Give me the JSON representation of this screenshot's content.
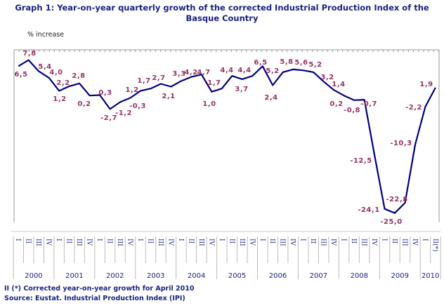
{
  "title_line1": "Graph 1: Year-on-year quarterly growth of the corrected Industrial Production Index of the",
  "title_line2": "Basque Country",
  "footnote": "II (*) Corrected year-on-year growth for April 2010",
  "source": "Source: Eustat. Industrial Production Index (IPI)",
  "chart_data": {
    "type": "line",
    "title": "Graph 1: Year-on-year quarterly growth of the corrected Industrial Production Index of the Basque Country",
    "ylabel": "% increase",
    "ylim": [
      -27,
      10
    ],
    "grid": false,
    "years": [
      "2000",
      "2001",
      "2002",
      "2003",
      "2004",
      "2005",
      "2006",
      "2007",
      "2008",
      "2009",
      "2010"
    ],
    "quarters": [
      "I",
      "II",
      "III",
      "IV",
      "I",
      "II",
      "III",
      "IV",
      "I",
      "II",
      "III",
      "IV",
      "I",
      "II",
      "III",
      "IV",
      "I",
      "II",
      "III",
      "IV",
      "I",
      "II",
      "III",
      "IV",
      "I",
      "II",
      "III",
      "IV",
      "I",
      "II",
      "III",
      "IV",
      "I",
      "II",
      "III",
      "IV",
      "I",
      "II",
      "III",
      "IV",
      "I",
      "II(*)"
    ],
    "values": [
      6.5,
      7.8,
      5.4,
      4.0,
      1.2,
      2.2,
      2.8,
      0.2,
      0.3,
      -2.7,
      -1.2,
      -0.3,
      1.2,
      1.7,
      2.7,
      2.1,
      3.3,
      4.2,
      4.7,
      1.0,
      1.7,
      4.4,
      3.7,
      4.4,
      6.5,
      2.4,
      5.2,
      5.8,
      5.6,
      5.2,
      3.2,
      1.4,
      0.2,
      -0.8,
      -0.7,
      -12.5,
      -24.1,
      -25.0,
      -22.8,
      -10.3,
      -2.2,
      1.9
    ],
    "data_labels": [
      "6,5",
      "7,8",
      "5,4",
      "4,0",
      "1,2",
      "2,2",
      "2,8",
      "0,2",
      "0,3",
      "-2,7",
      "-1,2",
      "-0,3",
      "1,2",
      "1,7",
      "2,7",
      "2,1",
      "3,3",
      "4,2",
      "4,7",
      "1,0",
      "1,7",
      "4,4",
      "3,7",
      "4,4",
      "6,5",
      "2,4",
      "5,2",
      "5,8",
      "5,6",
      "5,2",
      "3,2",
      "1,4",
      "0,2",
      "-0,8",
      "-0,7",
      "-12,5",
      "-24,1",
      "-25,0",
      "-22,8",
      "-10,3",
      "-2,2",
      "1,9"
    ],
    "colors": {
      "line": "#000080",
      "labels": "#993366",
      "axis_text": "#1a237e"
    }
  }
}
